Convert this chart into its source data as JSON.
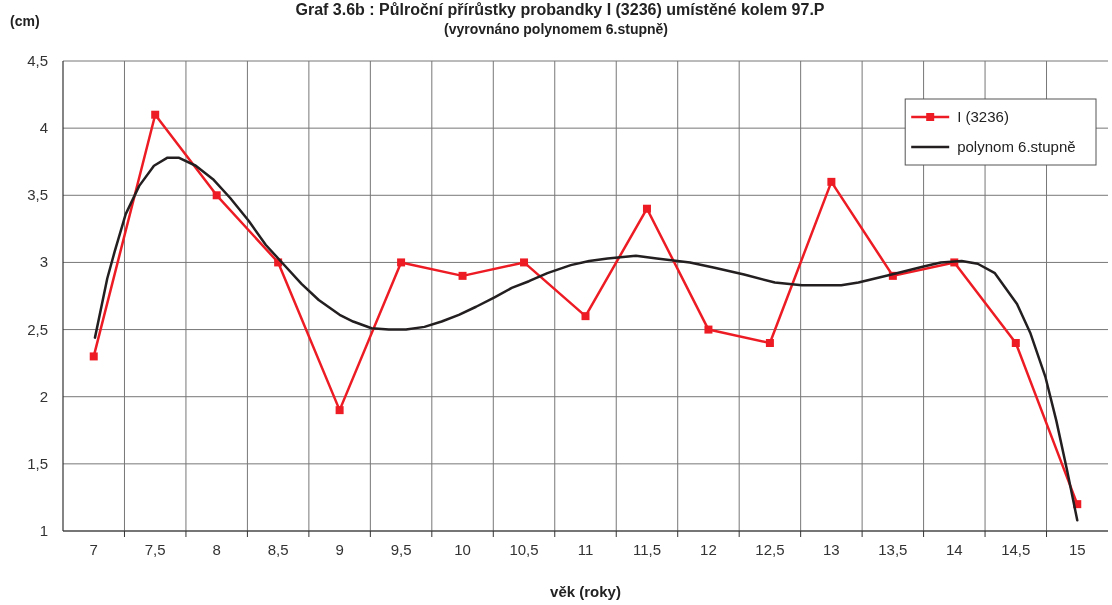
{
  "chart_data": {
    "type": "line",
    "title": "Graf 3.6b : Půlroční přírůstky probandky I (3236) umístěné kolem 97.P",
    "subtitle": "(vyrovnáno polynomem 6.stupně)",
    "xlabel": "věk (roky)",
    "ylabel": "(cm)",
    "xlim": [
      6.75,
      15.25
    ],
    "xticks": [
      7,
      {
        "value": 7.25,
        "label": null
      },
      {
        "value": 7.5,
        "label": "7,5"
      },
      {
        "value": 7.75,
        "label": null
      },
      8,
      {
        "value": 8.25,
        "label": null
      },
      {
        "value": 8.5,
        "label": "8,5"
      },
      {
        "value": 8.75,
        "label": null
      },
      9,
      {
        "value": 9.25,
        "label": null
      },
      {
        "value": 9.5,
        "label": "9,5"
      },
      {
        "value": 9.75,
        "label": null
      },
      10,
      {
        "value": 10.25,
        "label": null
      },
      {
        "value": 10.5,
        "label": "10,5"
      },
      {
        "value": 10.75,
        "label": null
      },
      11,
      {
        "value": 11.25,
        "label": null
      },
      {
        "value": 11.5,
        "label": "11,5"
      },
      {
        "value": 11.75,
        "label": null
      },
      12,
      {
        "value": 12.25,
        "label": null
      },
      {
        "value": 12.5,
        "label": "12,5"
      },
      {
        "value": 12.75,
        "label": null
      },
      13,
      {
        "value": 13.25,
        "label": null
      },
      {
        "value": 13.5,
        "label": "13,5"
      },
      {
        "value": 13.75,
        "label": null
      },
      14,
      {
        "value": 14.25,
        "label": null
      },
      {
        "value": 14.5,
        "label": "14,5"
      },
      {
        "value": 14.75,
        "label": null
      },
      15
    ],
    "ylim": [
      1,
      4.5
    ],
    "yticks": [
      1,
      {
        "value": 1.5,
        "label": "1,5"
      },
      2,
      {
        "value": 2.5,
        "label": "2,5"
      },
      3,
      {
        "value": 3.5,
        "label": "3,5"
      },
      4,
      {
        "value": 4.5,
        "label": "4,5"
      }
    ],
    "grid": true,
    "legend": "top right",
    "x": [
      7,
      7.5,
      8,
      8.5,
      9,
      9.5,
      10,
      10.5,
      11,
      11.5,
      12,
      12.5,
      13,
      13.5,
      14,
      14.5,
      15
    ],
    "series": [
      {
        "name": "I (3236)",
        "color": "#ed1c24",
        "marker": "square",
        "values": [
          2.3,
          4.1,
          3.5,
          3.0,
          1.9,
          3.0,
          2.9,
          3.0,
          2.6,
          3.4,
          2.5,
          2.4,
          3.6,
          2.9,
          3.0,
          2.4,
          1.2
        ]
      },
      {
        "name": "polynom 6.stupně",
        "color": "#231f20",
        "marker": "none",
        "x": [
          7.01,
          7.11,
          7.17,
          7.26,
          7.37,
          7.49,
          7.6,
          7.69,
          7.83,
          7.97,
          8.11,
          8.26,
          8.4,
          8.54,
          8.69,
          8.83,
          9.0,
          9.11,
          9.26,
          9.4,
          9.54,
          9.69,
          9.83,
          9.97,
          10.11,
          10.26,
          10.4,
          10.54,
          10.69,
          10.88,
          11.03,
          11.18,
          11.41,
          11.58,
          11.85,
          12.05,
          12.29,
          12.54,
          12.76,
          13.08,
          13.22,
          13.49,
          13.75,
          13.89,
          14.06,
          14.19,
          14.33,
          14.51,
          14.62,
          14.74,
          14.83,
          14.92,
          15.0
        ],
        "values": [
          2.44,
          2.88,
          3.08,
          3.36,
          3.57,
          3.72,
          3.78,
          3.78,
          3.72,
          3.62,
          3.48,
          3.31,
          3.13,
          2.99,
          2.84,
          2.72,
          2.61,
          2.56,
          2.51,
          2.5,
          2.5,
          2.52,
          2.56,
          2.61,
          2.67,
          2.74,
          2.81,
          2.86,
          2.92,
          2.98,
          3.01,
          3.03,
          3.05,
          3.03,
          3.0,
          2.96,
          2.91,
          2.85,
          2.83,
          2.83,
          2.85,
          2.91,
          2.97,
          3.0,
          3.01,
          2.99,
          2.92,
          2.69,
          2.47,
          2.15,
          1.82,
          1.44,
          1.08
        ]
      }
    ]
  }
}
